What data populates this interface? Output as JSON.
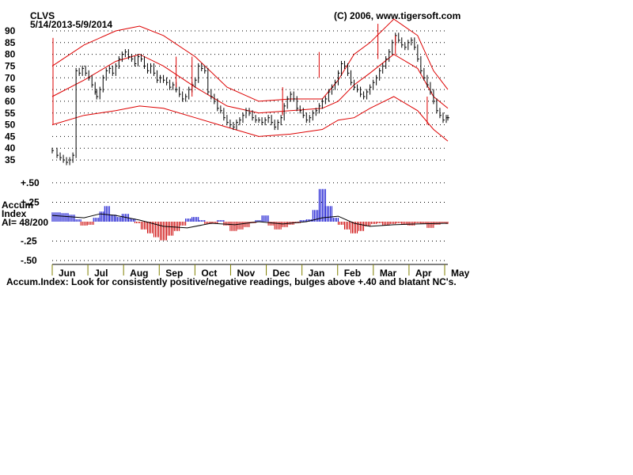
{
  "header": {
    "ticker": "CLVS",
    "date_range": "5/14/2013-5/9/2014",
    "copyright": "(C) 2006, www.tigersoft.com"
  },
  "indicator": {
    "line1": "Accum",
    "line2": "Index",
    "line3": "AI= 48/200"
  },
  "footer": {
    "note": "Accum.Index: Look for consistently positive/negative readings, bulges above +.40 and blatant NC's."
  },
  "colors": {
    "price": "#000000",
    "band": "#dd0000",
    "positive": "#0000cc",
    "negative": "#cc0000",
    "grid": "#000000",
    "axis_tick": "#808000"
  },
  "chart_data": [
    {
      "type": "line",
      "title": "CLVS",
      "subtitle": "5/14/2013-5/9/2014",
      "y_ticks": [
        35,
        40,
        45,
        50,
        55,
        60,
        65,
        70,
        75,
        80,
        85,
        90
      ],
      "ylim": [
        33,
        91
      ],
      "x_ticks": [
        "Jun",
        "Jul",
        "Aug",
        "Sep",
        "Oct",
        "Nov",
        "Dec",
        "Jan",
        "Feb",
        "Mar",
        "Apr",
        "May"
      ],
      "grid": true,
      "series": [
        {
          "role": "price",
          "x": [
            0,
            3,
            5,
            7,
            9,
            11,
            13,
            15,
            17,
            19,
            21,
            23,
            25,
            27,
            28,
            30,
            32,
            34,
            36,
            38,
            40,
            42,
            44,
            46,
            48,
            50,
            52,
            54,
            56,
            58,
            60,
            62,
            64,
            66,
            68,
            70,
            72,
            74,
            76,
            78,
            80,
            82,
            84,
            86,
            88,
            90,
            92,
            94,
            96,
            98,
            100,
            102,
            104,
            106,
            108,
            110,
            112,
            114,
            116,
            118,
            120,
            122,
            124,
            126,
            128,
            130,
            132,
            134,
            136,
            138,
            140,
            142,
            144,
            146,
            148,
            150,
            152,
            154,
            156,
            158,
            160,
            162,
            164,
            166,
            168,
            170,
            172,
            174,
            176,
            178,
            180,
            182,
            184,
            186,
            188,
            190,
            192,
            194,
            196,
            198,
            200,
            202,
            204,
            206,
            208,
            210,
            212,
            214,
            216,
            218,
            220,
            222,
            224,
            226,
            228,
            230,
            232,
            234,
            236,
            238,
            240,
            242,
            244,
            246,
            248,
            249
          ],
          "y": [
            39,
            37,
            36,
            35,
            34,
            35,
            37,
            73,
            72,
            74,
            72,
            70,
            67,
            64,
            62,
            65,
            70,
            73,
            74,
            72,
            75,
            78,
            80,
            81,
            79,
            78,
            76,
            79,
            78,
            75,
            73,
            75,
            72,
            69,
            70,
            69,
            68,
            66,
            67,
            65,
            63,
            61,
            62,
            65,
            67,
            69,
            75,
            74,
            73,
            64,
            62,
            60,
            57,
            56,
            53,
            51,
            50,
            49,
            51,
            52,
            54,
            56,
            55,
            53,
            52,
            52,
            51,
            52,
            53,
            51,
            49,
            51,
            53,
            58,
            61,
            63,
            61,
            57,
            56,
            54,
            52,
            53,
            55,
            56,
            58,
            60,
            61,
            64,
            66,
            68,
            72,
            76,
            75,
            72,
            68,
            66,
            65,
            63,
            62,
            64,
            66,
            68,
            70,
            73,
            75,
            78,
            81,
            85,
            88,
            86,
            84,
            83,
            85,
            86,
            83,
            78,
            73,
            70,
            67,
            64,
            60,
            56,
            54,
            52,
            53,
            53
          ]
        },
        {
          "role": "upper-band",
          "x": [
            0,
            20,
            40,
            55,
            70,
            90,
            110,
            130,
            150,
            170,
            180,
            190,
            200,
            215,
            230,
            240,
            249
          ],
          "y": [
            75,
            84,
            90,
            92,
            88,
            79,
            66,
            60,
            61,
            61,
            69,
            80,
            85,
            95,
            88,
            73,
            65
          ]
        },
        {
          "role": "middle-band",
          "x": [
            0,
            20,
            40,
            55,
            70,
            90,
            110,
            130,
            150,
            170,
            180,
            190,
            200,
            215,
            230,
            240,
            249
          ],
          "y": [
            62,
            69,
            77,
            80,
            75,
            66,
            58,
            55,
            56,
            57,
            60,
            67,
            72,
            80,
            74,
            62,
            57
          ]
        },
        {
          "role": "lower-band",
          "x": [
            0,
            20,
            40,
            55,
            70,
            90,
            110,
            130,
            150,
            170,
            180,
            190,
            200,
            215,
            230,
            240,
            249
          ],
          "y": [
            50,
            54,
            56,
            58,
            57,
            53,
            49,
            45,
            46,
            48,
            52,
            53,
            57,
            62,
            56,
            48,
            43
          ]
        }
      ]
    },
    {
      "type": "bar",
      "title": "Accum Index",
      "y_ticks": [
        -0.5,
        -0.25,
        0.25,
        0.5
      ],
      "y_tick_labels": [
        "-.50",
        "-.25",
        "+.25",
        "+.50"
      ],
      "ylim": [
        -0.55,
        0.55
      ],
      "values_x": [
        0,
        5,
        10,
        14,
        18,
        22,
        26,
        30,
        33,
        36,
        40,
        44,
        48,
        52,
        56,
        60,
        64,
        68,
        72,
        76,
        80,
        84,
        88,
        92,
        96,
        100,
        104,
        108,
        112,
        116,
        120,
        124,
        128,
        132,
        136,
        140,
        144,
        148,
        152,
        156,
        160,
        164,
        168,
        172,
        176,
        180,
        184,
        188,
        192,
        196,
        200,
        204,
        208,
        212,
        216,
        220,
        224,
        228,
        232,
        236,
        240,
        244,
        248
      ],
      "values": [
        0.12,
        0.11,
        0.09,
        0.03,
        -0.05,
        -0.04,
        0.05,
        0.13,
        0.2,
        0.09,
        0.06,
        0.1,
        0.04,
        -0.02,
        -0.1,
        -0.15,
        -0.2,
        -0.24,
        -0.18,
        -0.12,
        -0.05,
        0.04,
        0.06,
        0.02,
        -0.03,
        -0.02,
        0.02,
        -0.05,
        -0.12,
        -0.1,
        -0.07,
        -0.02,
        0.02,
        0.08,
        -0.05,
        -0.1,
        -0.07,
        -0.04,
        -0.02,
        0.02,
        0.03,
        0.15,
        0.42,
        0.2,
        0.05,
        -0.04,
        -0.1,
        -0.15,
        -0.12,
        -0.06,
        -0.03,
        -0.02,
        -0.05,
        -0.03,
        -0.02,
        -0.04,
        -0.05,
        -0.02,
        -0.03,
        -0.08,
        -0.04,
        -0.02,
        -0.03
      ],
      "ma_x": [
        0,
        20,
        30,
        40,
        55,
        70,
        85,
        100,
        115,
        130,
        145,
        160,
        170,
        180,
        190,
        200,
        215,
        230,
        249
      ],
      "ma": [
        0.08,
        0.05,
        0.1,
        0.08,
        0.02,
        -0.06,
        -0.08,
        -0.02,
        -0.04,
        0.0,
        -0.03,
        0.0,
        0.05,
        0.07,
        -0.02,
        -0.06,
        -0.04,
        -0.03,
        -0.02
      ]
    }
  ]
}
